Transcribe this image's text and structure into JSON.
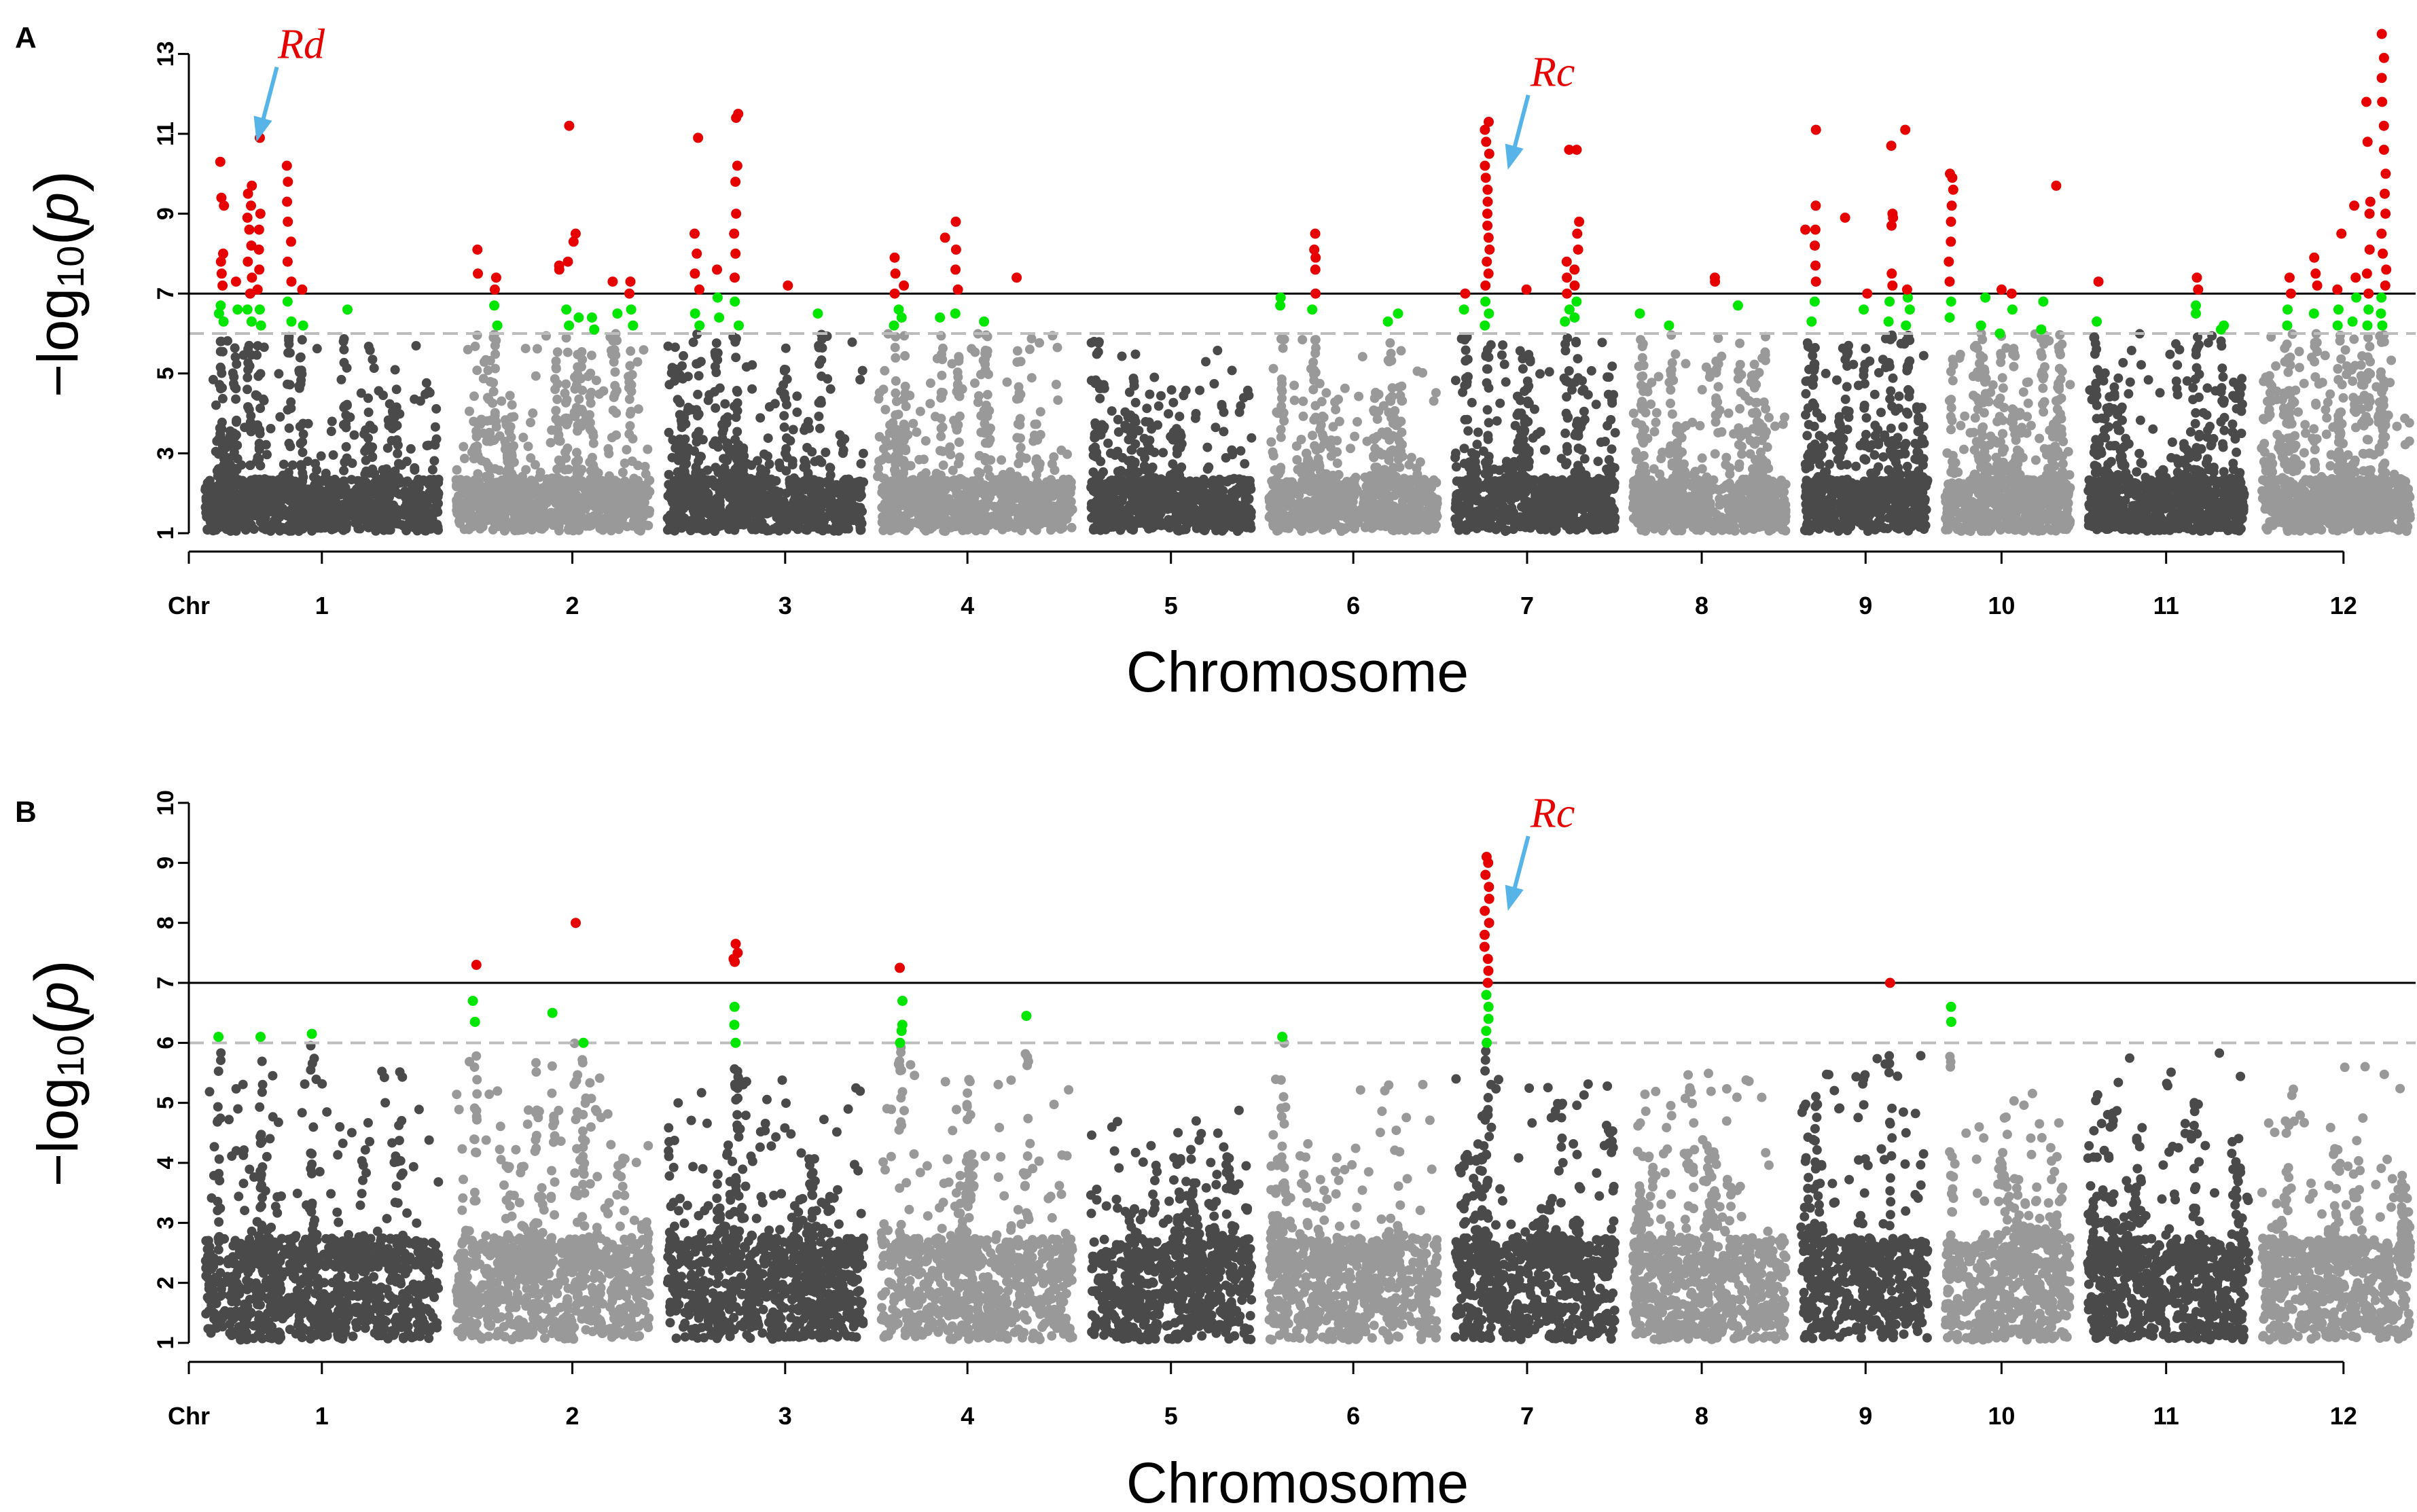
{
  "chart_data": [
    {
      "type": "scatter",
      "panel_label": "A",
      "xlabel": "Chromosome",
      "chr_label": "Chr",
      "ylim": [
        1,
        13.5
      ],
      "yticks": [
        1,
        3,
        5,
        7,
        9,
        11,
        13
      ],
      "ylabel": {
        "prefix": "−log",
        "sub": "10",
        "paren_open": "(",
        "var": "p",
        "paren_close": ")"
      },
      "thresholds": {
        "significant": 7,
        "suggestive": 6
      },
      "colors": {
        "dark": "#4a4a4a",
        "light": "#999999",
        "suggestive": "#00e600",
        "significant": "#e60000",
        "line": "#000000",
        "dashed": "#bdbdbd",
        "arrow": "#56b4e9",
        "annotation": "#e60000"
      },
      "chromosomes": [
        "1",
        "2",
        "3",
        "4",
        "5",
        "6",
        "7",
        "8",
        "9",
        "10",
        "11",
        "12"
      ],
      "chr_lengths": [
        43.3,
        35.9,
        36.4,
        35.5,
        29.9,
        31.2,
        29.7,
        28.4,
        23.0,
        23.2,
        29.0,
        27.5
      ],
      "chr_tick_positions": [
        0.5,
        0.6,
        0.6,
        0.45,
        0.5,
        0.5,
        0.45,
        0.45,
        0.5,
        0.45,
        0.5,
        0.55
      ],
      "chr_peak_max": [
        6.0,
        6.2,
        6.0,
        6.0,
        5.9,
        6.0,
        6.0,
        6.0,
        6.0,
        6.0,
        6.0,
        6.0
      ],
      "peaks": [
        {
          "chr": 1,
          "pos": 0.07,
          "values": [
            6.3,
            6.5,
            6.7,
            7.2,
            7.5,
            7.8,
            8.0,
            9.2,
            9.4,
            10.3
          ]
        },
        {
          "chr": 1,
          "pos": 0.13,
          "values": [
            6.6,
            7.3
          ]
        },
        {
          "chr": 1,
          "pos": 0.19,
          "values": [
            6.3,
            6.6,
            7.0,
            7.4,
            7.8,
            8.2,
            8.6,
            8.9,
            9.2,
            9.5,
            9.7
          ]
        },
        {
          "chr": 1,
          "pos": 0.23,
          "values": [
            6.2,
            6.6,
            7.1,
            7.6,
            8.1,
            8.6,
            9.0,
            10.9
          ]
        },
        {
          "chr": 1,
          "pos": 0.36,
          "values": [
            6.3,
            6.8,
            7.3,
            7.8,
            8.3,
            8.8,
            9.3,
            9.8,
            10.2
          ]
        },
        {
          "chr": 1,
          "pos": 0.41,
          "values": [
            6.2,
            7.1
          ]
        },
        {
          "chr": 1,
          "pos": 0.6,
          "values": [
            6.6
          ]
        },
        {
          "chr": 2,
          "pos": 0.1,
          "values": [
            7.5,
            8.1
          ]
        },
        {
          "chr": 2,
          "pos": 0.2,
          "values": [
            6.2,
            6.7,
            7.1,
            7.4
          ]
        },
        {
          "chr": 2,
          "pos": 0.52,
          "values": [
            7.6,
            7.7
          ]
        },
        {
          "chr": 2,
          "pos": 0.57,
          "values": [
            6.2,
            6.6,
            7.8,
            11.2
          ]
        },
        {
          "chr": 2,
          "pos": 0.62,
          "values": [
            6.4,
            8.3,
            8.5
          ]
        },
        {
          "chr": 2,
          "pos": 0.7,
          "values": [
            6.1,
            6.4
          ]
        },
        {
          "chr": 2,
          "pos": 0.82,
          "values": [
            6.5,
            7.3
          ]
        },
        {
          "chr": 2,
          "pos": 0.9,
          "values": [
            6.2,
            6.6,
            7.0,
            7.3
          ]
        },
        {
          "chr": 3,
          "pos": 0.15,
          "values": [
            6.2,
            6.5,
            7.1,
            7.5,
            8.0,
            8.5,
            10.9
          ]
        },
        {
          "chr": 3,
          "pos": 0.25,
          "values": [
            6.4,
            6.9,
            7.6
          ]
        },
        {
          "chr": 3,
          "pos": 0.35,
          "values": [
            6.2,
            6.8,
            7.4,
            8.0,
            8.5,
            9.0,
            9.8,
            10.2,
            11.4,
            11.5
          ]
        },
        {
          "chr": 3,
          "pos": 0.6,
          "values": [
            7.2
          ]
        },
        {
          "chr": 3,
          "pos": 0.78,
          "values": [
            6.5
          ]
        },
        {
          "chr": 4,
          "pos": 0.08,
          "values": [
            6.2,
            6.6,
            7.0,
            7.5,
            7.9
          ]
        },
        {
          "chr": 4,
          "pos": 0.12,
          "values": [
            6.4,
            7.2
          ]
        },
        {
          "chr": 4,
          "pos": 0.32,
          "values": [
            6.4,
            8.4
          ]
        },
        {
          "chr": 4,
          "pos": 0.4,
          "values": [
            6.5,
            7.1,
            7.6,
            8.1,
            8.8
          ]
        },
        {
          "chr": 4,
          "pos": 0.55,
          "values": [
            6.3
          ]
        },
        {
          "chr": 4,
          "pos": 0.72,
          "values": [
            7.4
          ]
        },
        {
          "chr": 6,
          "pos": 0.08,
          "values": [
            6.7,
            6.9
          ]
        },
        {
          "chr": 6,
          "pos": 0.27,
          "values": [
            6.6,
            7.0,
            7.6,
            7.9,
            8.1,
            8.5
          ]
        },
        {
          "chr": 6,
          "pos": 0.72,
          "values": [
            6.3
          ]
        },
        {
          "chr": 6,
          "pos": 0.78,
          "values": [
            6.5
          ]
        },
        {
          "chr": 7,
          "pos": 0.07,
          "values": [
            6.6,
            7.0
          ]
        },
        {
          "chr": 7,
          "pos": 0.2,
          "values": [
            6.2,
            6.5,
            6.8,
            7.2,
            7.5,
            7.8,
            8.1,
            8.4,
            8.7,
            9.0,
            9.3,
            9.6,
            9.9,
            10.2,
            10.5,
            10.8,
            11.1,
            11.3
          ]
        },
        {
          "chr": 7,
          "pos": 0.46,
          "values": [
            7.1
          ]
        },
        {
          "chr": 7,
          "pos": 0.7,
          "values": [
            6.3,
            6.6,
            7.0,
            7.4,
            7.8,
            10.6
          ]
        },
        {
          "chr": 7,
          "pos": 0.76,
          "values": [
            6.4,
            6.8,
            7.2,
            7.6,
            8.1,
            8.5,
            8.8,
            10.6
          ]
        },
        {
          "chr": 8,
          "pos": 0.06,
          "values": [
            6.5
          ]
        },
        {
          "chr": 8,
          "pos": 0.25,
          "values": [
            6.2
          ]
        },
        {
          "chr": 8,
          "pos": 0.55,
          "values": [
            7.3,
            7.4
          ]
        },
        {
          "chr": 8,
          "pos": 0.7,
          "values": [
            6.7
          ]
        },
        {
          "chr": 9,
          "pos": 0.03,
          "values": [
            8.6
          ]
        },
        {
          "chr": 9,
          "pos": 0.08,
          "values": [
            6.3,
            6.8,
            7.3,
            7.7,
            8.2,
            8.6,
            9.2,
            11.1
          ]
        },
        {
          "chr": 9,
          "pos": 0.35,
          "values": [
            8.9
          ]
        },
        {
          "chr": 9,
          "pos": 0.5,
          "values": [
            6.6,
            7.0
          ]
        },
        {
          "chr": 9,
          "pos": 0.7,
          "values": [
            6.3,
            6.8,
            7.2,
            7.5,
            8.7,
            8.9,
            9.0,
            10.7
          ]
        },
        {
          "chr": 9,
          "pos": 0.84,
          "values": [
            6.2,
            6.6,
            6.9,
            7.1,
            11.1
          ]
        },
        {
          "chr": 10,
          "pos": 0.05,
          "values": [
            6.4,
            6.8,
            7.3,
            7.8,
            8.3,
            8.8,
            9.2,
            9.6,
            9.9,
            10.0
          ]
        },
        {
          "chr": 10,
          "pos": 0.3,
          "values": [
            6.2,
            6.9
          ]
        },
        {
          "chr": 10,
          "pos": 0.45,
          "values": [
            6.0,
            7.1
          ]
        },
        {
          "chr": 10,
          "pos": 0.55,
          "values": [
            6.6,
            7.0
          ]
        },
        {
          "chr": 10,
          "pos": 0.78,
          "values": [
            6.1,
            6.8
          ]
        },
        {
          "chr": 10,
          "pos": 0.9,
          "values": [
            9.7
          ]
        },
        {
          "chr": 11,
          "pos": 0.05,
          "values": [
            5.9,
            6.3,
            7.3
          ]
        },
        {
          "chr": 11,
          "pos": 0.7,
          "values": [
            6.5,
            6.7,
            7.1,
            7.4
          ]
        },
        {
          "chr": 11,
          "pos": 0.86,
          "values": [
            6.1,
            6.2
          ]
        },
        {
          "chr": 12,
          "pos": 0.18,
          "values": [
            6.2,
            6.6,
            7.0,
            7.4
          ]
        },
        {
          "chr": 12,
          "pos": 0.36,
          "values": [
            6.5,
            7.2,
            7.5,
            7.9
          ]
        },
        {
          "chr": 12,
          "pos": 0.52,
          "values": [
            6.2,
            6.6,
            7.1,
            8.5
          ]
        },
        {
          "chr": 12,
          "pos": 0.62,
          "values": [
            6.3,
            6.9,
            7.4,
            9.2
          ]
        },
        {
          "chr": 12,
          "pos": 0.72,
          "values": [
            6.2,
            6.6,
            7.0,
            7.5,
            8.1,
            9.0,
            9.3,
            10.8,
            11.8
          ]
        },
        {
          "chr": 12,
          "pos": 0.82,
          "values": [
            6.2,
            6.5,
            6.9,
            7.2,
            7.6,
            8.0,
            8.5,
            9.0,
            9.5,
            10.0,
            10.6,
            11.2,
            11.8,
            12.4,
            12.9,
            13.5
          ]
        }
      ],
      "annotations": [
        {
          "text": "Rd",
          "chr": 1,
          "pos": 0.22,
          "y_tip": 10.8,
          "y_text": 12.9
        },
        {
          "text": "Rc",
          "chr": 7,
          "pos": 0.33,
          "y_tip": 10.1,
          "y_text": 12.2
        }
      ]
    },
    {
      "type": "scatter",
      "panel_label": "B",
      "xlabel": "Chromosome",
      "chr_label": "Chr",
      "ylim": [
        1,
        10
      ],
      "yticks": [
        1,
        2,
        3,
        4,
        5,
        6,
        7,
        8,
        9,
        10
      ],
      "ylabel": {
        "prefix": "−log",
        "sub": "10",
        "paren_open": "(",
        "var": "p",
        "paren_close": ")"
      },
      "thresholds": {
        "significant": 7,
        "suggestive": 6
      },
      "colors": {
        "dark": "#4a4a4a",
        "light": "#999999",
        "suggestive": "#00e600",
        "significant": "#e60000",
        "line": "#000000",
        "dashed": "#bdbdbd",
        "arrow": "#56b4e9",
        "annotation": "#e60000"
      },
      "chromosomes": [
        "1",
        "2",
        "3",
        "4",
        "5",
        "6",
        "7",
        "8",
        "9",
        "10",
        "11",
        "12"
      ],
      "chr_lengths": [
        43.3,
        35.9,
        36.4,
        35.5,
        29.9,
        31.2,
        29.7,
        28.4,
        23.0,
        23.2,
        29.0,
        27.5
      ],
      "chr_tick_positions": [
        0.5,
        0.6,
        0.6,
        0.45,
        0.5,
        0.5,
        0.45,
        0.45,
        0.5,
        0.45,
        0.5,
        0.55
      ],
      "chr_peak_max": [
        5.8,
        5.8,
        5.6,
        5.7,
        4.9,
        5.5,
        5.4,
        5.5,
        5.8,
        5.2,
        6.0,
        5.8
      ],
      "peaks": [
        {
          "chr": 1,
          "pos": 0.06,
          "values": [
            6.1
          ]
        },
        {
          "chr": 1,
          "pos": 0.24,
          "values": [
            6.1
          ]
        },
        {
          "chr": 1,
          "pos": 0.46,
          "values": [
            6.15
          ]
        },
        {
          "chr": 2,
          "pos": 0.1,
          "values": [
            6.35,
            6.7,
            7.3
          ]
        },
        {
          "chr": 2,
          "pos": 0.5,
          "values": [
            6.5
          ]
        },
        {
          "chr": 2,
          "pos": 0.62,
          "values": [
            8.0
          ]
        },
        {
          "chr": 2,
          "pos": 0.66,
          "values": [
            6.0
          ]
        },
        {
          "chr": 3,
          "pos": 0.35,
          "values": [
            6.0,
            6.3,
            6.6,
            7.35,
            7.4,
            7.5,
            7.65
          ]
        },
        {
          "chr": 4,
          "pos": 0.1,
          "values": [
            6.0,
            6.2,
            6.3,
            6.7,
            7.25
          ]
        },
        {
          "chr": 4,
          "pos": 0.76,
          "values": [
            6.45
          ]
        },
        {
          "chr": 6,
          "pos": 0.08,
          "values": [
            6.1
          ]
        },
        {
          "chr": 7,
          "pos": 0.2,
          "values": [
            6.0,
            6.2,
            6.4,
            6.6,
            6.8,
            7.0,
            7.2,
            7.4,
            7.6,
            7.8,
            8.0,
            8.2,
            8.4,
            8.6,
            8.8,
            9.0,
            9.1
          ]
        },
        {
          "chr": 9,
          "pos": 0.7,
          "values": [
            7.0
          ]
        },
        {
          "chr": 10,
          "pos": 0.05,
          "values": [
            6.35,
            6.6
          ]
        }
      ],
      "annotations": [
        {
          "text": "Rc",
          "chr": 7,
          "pos": 0.33,
          "y_tip": 8.2,
          "y_text": 9.6
        }
      ]
    }
  ]
}
